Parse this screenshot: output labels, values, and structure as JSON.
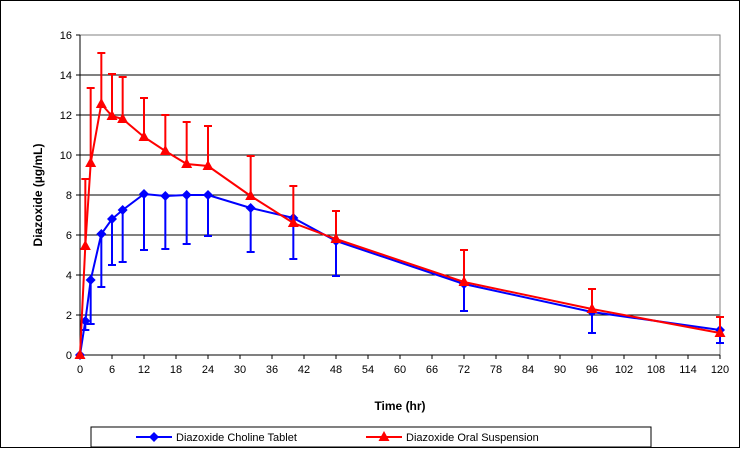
{
  "chart_data": {
    "type": "line",
    "title": "",
    "xlabel": "Time (hr)",
    "ylabel": "Diazoxide (µg/mL)",
    "xlim": [
      0,
      120
    ],
    "ylim": [
      0,
      16
    ],
    "x_ticks": [
      0,
      6,
      12,
      18,
      24,
      30,
      36,
      42,
      48,
      54,
      60,
      66,
      72,
      78,
      84,
      90,
      96,
      102,
      108,
      114,
      120
    ],
    "y_ticks": [
      0,
      2,
      4,
      6,
      8,
      10,
      12,
      14,
      16
    ],
    "grid": "horizontal",
    "legend_placement": "bottom",
    "series": [
      {
        "name": "Diazoxide Choline Tablet",
        "color": "#0000ff",
        "marker": "diamond",
        "x": [
          0,
          1,
          2,
          4,
          6,
          8,
          12,
          16,
          20,
          24,
          32,
          40,
          48,
          72,
          96,
          120
        ],
        "y": [
          0,
          1.7,
          3.75,
          6.05,
          6.8,
          7.25,
          8.05,
          7.95,
          8.0,
          8.0,
          7.35,
          6.85,
          5.7,
          3.55,
          2.15,
          1.25
        ],
        "sd": [
          0,
          0.45,
          2.2,
          2.65,
          2.3,
          2.6,
          2.8,
          2.65,
          2.45,
          2.05,
          2.2,
          2.05,
          1.75,
          1.35,
          1.05,
          0.65
        ]
      },
      {
        "name": "Diazoxide Oral Suspension",
        "color": "#ff0000",
        "marker": "triangle",
        "x": [
          0,
          1,
          2,
          4,
          6,
          8,
          12,
          16,
          20,
          24,
          32,
          40,
          48,
          72,
          96,
          120
        ],
        "y": [
          0,
          5.45,
          9.6,
          12.55,
          11.95,
          11.8,
          10.9,
          10.2,
          9.55,
          9.45,
          7.95,
          6.6,
          5.8,
          3.65,
          2.3,
          1.1
        ],
        "sd": [
          0,
          3.35,
          3.75,
          2.55,
          2.1,
          2.1,
          1.95,
          1.8,
          2.1,
          2.0,
          2.0,
          1.85,
          1.4,
          1.6,
          1.0,
          0.8
        ]
      }
    ]
  }
}
